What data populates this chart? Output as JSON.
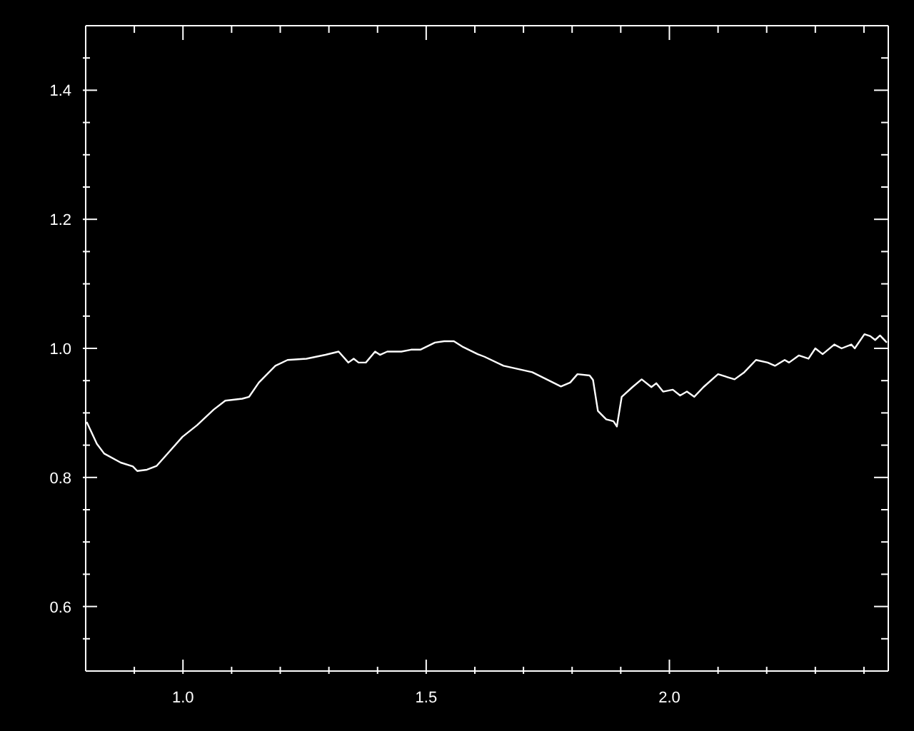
{
  "chart_data": {
    "type": "line",
    "x": [
      0.802,
      0.823,
      0.838,
      0.872,
      0.897,
      0.906,
      0.926,
      0.946,
      0.965,
      0.999,
      1.029,
      1.063,
      1.087,
      1.122,
      1.136,
      1.156,
      1.19,
      1.215,
      1.254,
      1.293,
      1.32,
      1.34,
      1.351,
      1.361,
      1.376,
      1.395,
      1.405,
      1.42,
      1.449,
      1.469,
      1.488,
      1.518,
      1.537,
      1.557,
      1.576,
      1.606,
      1.62,
      1.659,
      1.718,
      1.777,
      1.796,
      1.811,
      1.836,
      1.843,
      1.853,
      1.87,
      1.885,
      1.892,
      1.902,
      1.924,
      1.943,
      1.963,
      1.973,
      1.987,
      2.007,
      2.022,
      2.036,
      2.051,
      2.07,
      2.1,
      2.134,
      2.154,
      2.178,
      2.202,
      2.217,
      2.237,
      2.246,
      2.266,
      2.286,
      2.3,
      2.315,
      2.339,
      2.354,
      2.374,
      2.381,
      2.401,
      2.413,
      2.423,
      2.433,
      2.447
    ],
    "series": [
      {
        "color": "#ffffff",
        "values": [
          0.886,
          0.852,
          0.837,
          0.823,
          0.817,
          0.81,
          0.812,
          0.818,
          0.834,
          0.863,
          0.881,
          0.905,
          0.919,
          0.922,
          0.925,
          0.947,
          0.973,
          0.982,
          0.984,
          0.99,
          0.995,
          0.978,
          0.984,
          0.978,
          0.978,
          0.995,
          0.99,
          0.995,
          0.995,
          0.998,
          0.998,
          1.009,
          1.011,
          1.011,
          1.002,
          0.991,
          0.987,
          0.973,
          0.963,
          0.941,
          0.947,
          0.96,
          0.958,
          0.951,
          0.903,
          0.89,
          0.887,
          0.879,
          0.925,
          0.94,
          0.952,
          0.94,
          0.946,
          0.933,
          0.936,
          0.927,
          0.933,
          0.925,
          0.94,
          0.96,
          0.952,
          0.963,
          0.982,
          0.978,
          0.973,
          0.982,
          0.978,
          0.989,
          0.984,
          1.0,
          0.991,
          1.006,
          1.0,
          1.006,
          1.0,
          1.022,
          1.019,
          1.013,
          1.02,
          1.009
        ]
      }
    ],
    "xlim": [
      0.8,
      2.45
    ],
    "xticks": [
      {
        "value": 0.9,
        "label": null
      },
      {
        "value": 1.0,
        "label": "1.0"
      },
      {
        "value": 1.1,
        "label": null
      },
      {
        "value": 1.2,
        "label": null
      },
      {
        "value": 1.3,
        "label": null
      },
      {
        "value": 1.4,
        "label": null
      },
      1.5,
      {
        "value": 1.6,
        "label": null
      },
      {
        "value": 1.7,
        "label": null
      },
      {
        "value": 1.8,
        "label": null
      },
      {
        "value": 1.9,
        "label": null
      },
      {
        "value": 2.0,
        "label": "2.0"
      },
      {
        "value": 2.1,
        "label": null
      },
      {
        "value": 2.2,
        "label": null
      },
      {
        "value": 2.3,
        "label": null
      },
      {
        "value": 2.4,
        "label": null
      }
    ],
    "ylim": [
      0.5,
      1.5
    ],
    "yticks": [
      {
        "value": 0.55,
        "label": null
      },
      0.6,
      {
        "value": 0.65,
        "label": null
      },
      {
        "value": 0.7,
        "label": null
      },
      {
        "value": 0.75,
        "label": null
      },
      0.8,
      {
        "value": 0.85,
        "label": null
      },
      {
        "value": 0.9,
        "label": null
      },
      {
        "value": 0.95,
        "label": null
      },
      {
        "value": 1.0,
        "label": "1.0"
      },
      {
        "value": 1.05,
        "label": null
      },
      {
        "value": 1.1,
        "label": null
      },
      {
        "value": 1.15,
        "label": null
      },
      1.2,
      {
        "value": 1.25,
        "label": null
      },
      {
        "value": 1.3,
        "label": null
      },
      {
        "value": 1.35,
        "label": null
      },
      1.4,
      {
        "value": 1.45,
        "label": null
      }
    ],
    "grid": false,
    "legend": false,
    "marker": "none",
    "line_style": "solid"
  }
}
